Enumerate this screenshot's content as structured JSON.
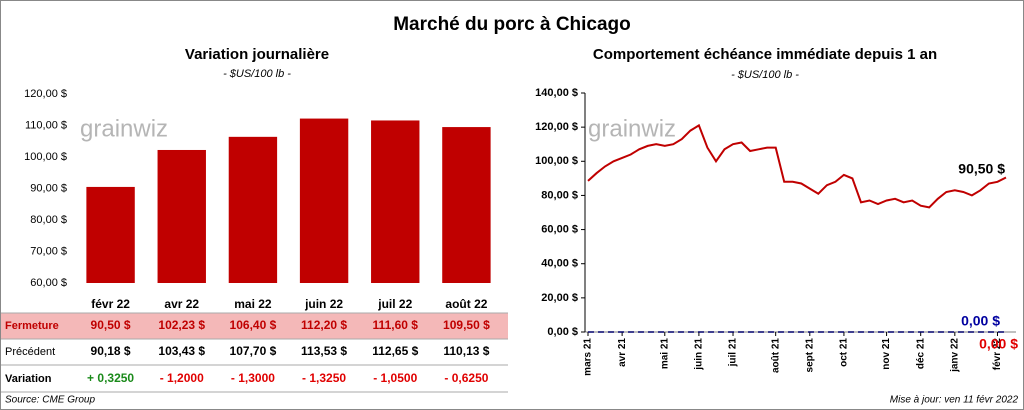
{
  "title": "Marché du porc à Chicago",
  "watermark": "grainwiz",
  "chart_data": [
    {
      "type": "bar",
      "title": "Variation journalière",
      "subtitle": "- $US/100 lb -",
      "categories": [
        "févr 22",
        "avr 22",
        "mai 22",
        "juin 22",
        "juil 22",
        "août 22"
      ],
      "values": [
        90.5,
        102.23,
        106.4,
        112.2,
        111.6,
        109.5
      ],
      "color": "#c00000",
      "ylim": [
        60,
        120
      ],
      "yticks": [
        {
          "value": 60,
          "label": "60,00 $"
        },
        {
          "value": 70,
          "label": "70,00 $"
        },
        {
          "value": 80,
          "label": "80,00 $"
        },
        {
          "value": 90,
          "label": "90,00 $"
        },
        {
          "value": 100,
          "label": "100,00 $"
        },
        {
          "value": 110,
          "label": "110,00 $"
        },
        {
          "value": 120,
          "label": "120,00 $"
        }
      ],
      "grid": false
    },
    {
      "type": "line",
      "title": "Comportement échéance immédiate depuis 1 an",
      "subtitle": "- $US/100 lb -",
      "categories": [
        "mars 21",
        null,
        null,
        null,
        "avr 21",
        null,
        null,
        null,
        null,
        "mai 21",
        null,
        null,
        null,
        "juin 21",
        null,
        null,
        null,
        "juil 21",
        null,
        null,
        null,
        null,
        "août 21",
        null,
        null,
        null,
        "sept 21",
        null,
        null,
        null,
        "oct 21",
        null,
        null,
        null,
        null,
        "nov 21",
        null,
        null,
        null,
        "déc 21",
        null,
        null,
        null,
        "janv 22",
        null,
        null,
        null,
        null,
        "févr 22",
        null
      ],
      "series": [
        {
          "color": "#c00000",
          "style": "solid",
          "values": [
            88.5,
            93,
            97,
            100,
            102,
            104,
            107,
            109,
            110,
            109,
            110,
            113,
            118,
            121,
            108,
            100,
            107,
            110,
            111,
            106,
            107,
            108,
            108,
            88,
            88,
            87,
            84,
            81,
            86,
            88,
            92,
            90,
            76,
            77,
            75,
            77,
            78,
            76,
            77,
            74,
            73,
            78,
            82,
            83,
            82,
            80,
            83,
            87,
            88,
            90.5
          ]
        },
        {
          "color": "#0000a0",
          "style": "dashed",
          "values": [
            0,
            0,
            0,
            0,
            0,
            0,
            0,
            0,
            0,
            0,
            0,
            0,
            0,
            0,
            0,
            0,
            0,
            0,
            0,
            0,
            0,
            0,
            0,
            0,
            0,
            0,
            0,
            0,
            0,
            0,
            0,
            0,
            0,
            0,
            0,
            0,
            0,
            0,
            0,
            0,
            0,
            0,
            0,
            0,
            0,
            0,
            0,
            0,
            0,
            0
          ]
        }
      ],
      "annotations": [
        {
          "text": "90,50 $",
          "color": "#000000"
        },
        {
          "text": "0,00 $",
          "color": "#0000a0"
        },
        {
          "text": "0,00 $",
          "color": "#e00000"
        }
      ],
      "ylim": [
        0,
        140
      ],
      "yticks": [
        {
          "value": 0,
          "label": "0,00 $"
        },
        {
          "value": 20,
          "label": "20,00 $"
        },
        {
          "value": 40,
          "label": "40,00 $"
        },
        {
          "value": 60,
          "label": "60,00 $"
        },
        {
          "value": 80,
          "label": "80,00 $"
        },
        {
          "value": 100,
          "label": "100,00 $"
        },
        {
          "value": 120,
          "label": "120,00 $"
        },
        {
          "value": 140,
          "label": "140,00 $"
        }
      ],
      "grid": false
    }
  ],
  "table": {
    "rows": [
      [
        "Fermeture",
        "90,50 $",
        "102,23 $",
        "106,40 $",
        "112,20 $",
        "111,60 $",
        "109,50 $"
      ],
      [
        "Précédent",
        "90,18 $",
        "103,43 $",
        "107,70 $",
        "113,53 $",
        "112,65 $",
        "110,13 $"
      ],
      [
        "Variation",
        "+ 0,3250",
        "- 1,2000",
        "- 1,3000",
        "- 1,3250",
        "- 1,0500",
        "- 0,6250"
      ]
    ]
  },
  "footer": {
    "source": "Source: CME Group",
    "updated": "Mise à jour: ven 11 févr 2022"
  }
}
